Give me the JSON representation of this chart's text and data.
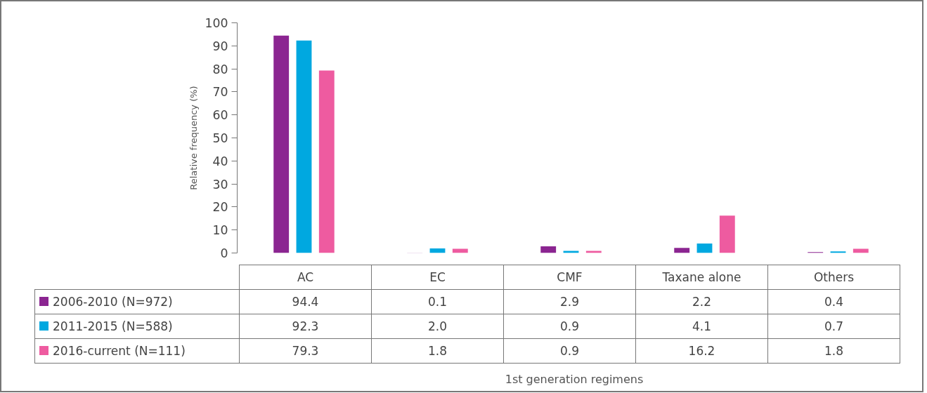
{
  "chart_data": {
    "type": "bar",
    "ylabel": "Relative frequency (%)",
    "annotations": [
      "1st generation regimens"
    ],
    "categories": [
      "AC",
      "EC",
      "CMF",
      "Taxane alone",
      "Others"
    ],
    "series": [
      {
        "name": "2006-2010 (N=972)",
        "color": "#8b2591",
        "values": [
          94.4,
          0.1,
          2.9,
          2.2,
          0.4
        ],
        "value_labels": [
          "94.4",
          "0.1",
          "2.9",
          "2.2",
          "0.4"
        ]
      },
      {
        "name": "2011-2015 (N=588)",
        "color": "#00a8e0",
        "values": [
          92.3,
          2.0,
          0.9,
          4.1,
          0.7
        ],
        "value_labels": [
          "92.3",
          "2.0",
          "0.9",
          "4.1",
          "0.7"
        ]
      },
      {
        "name": "2016-current (N=111)",
        "color": "#ee5ba0",
        "values": [
          79.3,
          1.8,
          0.9,
          16.2,
          1.8
        ],
        "value_labels": [
          "79.3",
          "1.8",
          "0.9",
          "16.2",
          "1.8"
        ]
      }
    ],
    "ylim": [
      0,
      100
    ],
    "yticks": [
      0,
      10,
      20,
      30,
      40,
      50,
      60,
      70,
      80,
      90,
      100
    ],
    "grid": false,
    "legend": "bottom left"
  }
}
